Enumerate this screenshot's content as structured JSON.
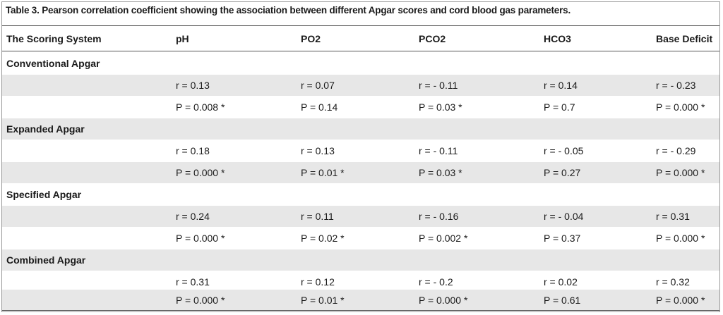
{
  "caption": "Table 3.  Pearson correlation coefficient showing the association between different Apgar scores and cord blood gas parameters.",
  "headers": [
    "The Scoring System",
    "pH",
    "PO2",
    "PCO2",
    "HCO3",
    "Base Deficit"
  ],
  "groups": [
    {
      "name": "Conventional Apgar",
      "r": [
        "r = 0.13",
        "r = 0.07",
        "r = - 0.11",
        "r = 0.14",
        "r = - 0.23"
      ],
      "p": [
        "P = 0.008 *",
        "P = 0.14",
        "P = 0.03 *",
        "P = 0.7",
        "P = 0.000 *"
      ]
    },
    {
      "name": "Expanded Apgar",
      "r": [
        "r = 0.18",
        "r = 0.13",
        "r = - 0.11",
        "r = - 0.05",
        "r = - 0.29"
      ],
      "p": [
        "P = 0.000 *",
        "P = 0.01 *",
        "P = 0.03 *",
        "P = 0.27",
        "P = 0.000 *"
      ]
    },
    {
      "name": "Specified Apgar",
      "r": [
        "r = 0.24",
        "r = 0.11",
        "r = - 0.16",
        "r = - 0.04",
        "r = 0.31"
      ],
      "p": [
        "P = 0.000 *",
        "P = 0.02 *",
        "P = 0.002 *",
        "P = 0.37",
        "P = 0.000 *"
      ]
    },
    {
      "name": "Combined Apgar",
      "r": [
        "r = 0.31",
        "r = 0.12",
        "r = - 0.2",
        "r = 0.02",
        "r = 0.32"
      ],
      "p": [
        "P = 0.000 *",
        "P = 0.01 *",
        "P = 0.000 *",
        "P = 0.61",
        "P = 0.000 *"
      ]
    }
  ]
}
